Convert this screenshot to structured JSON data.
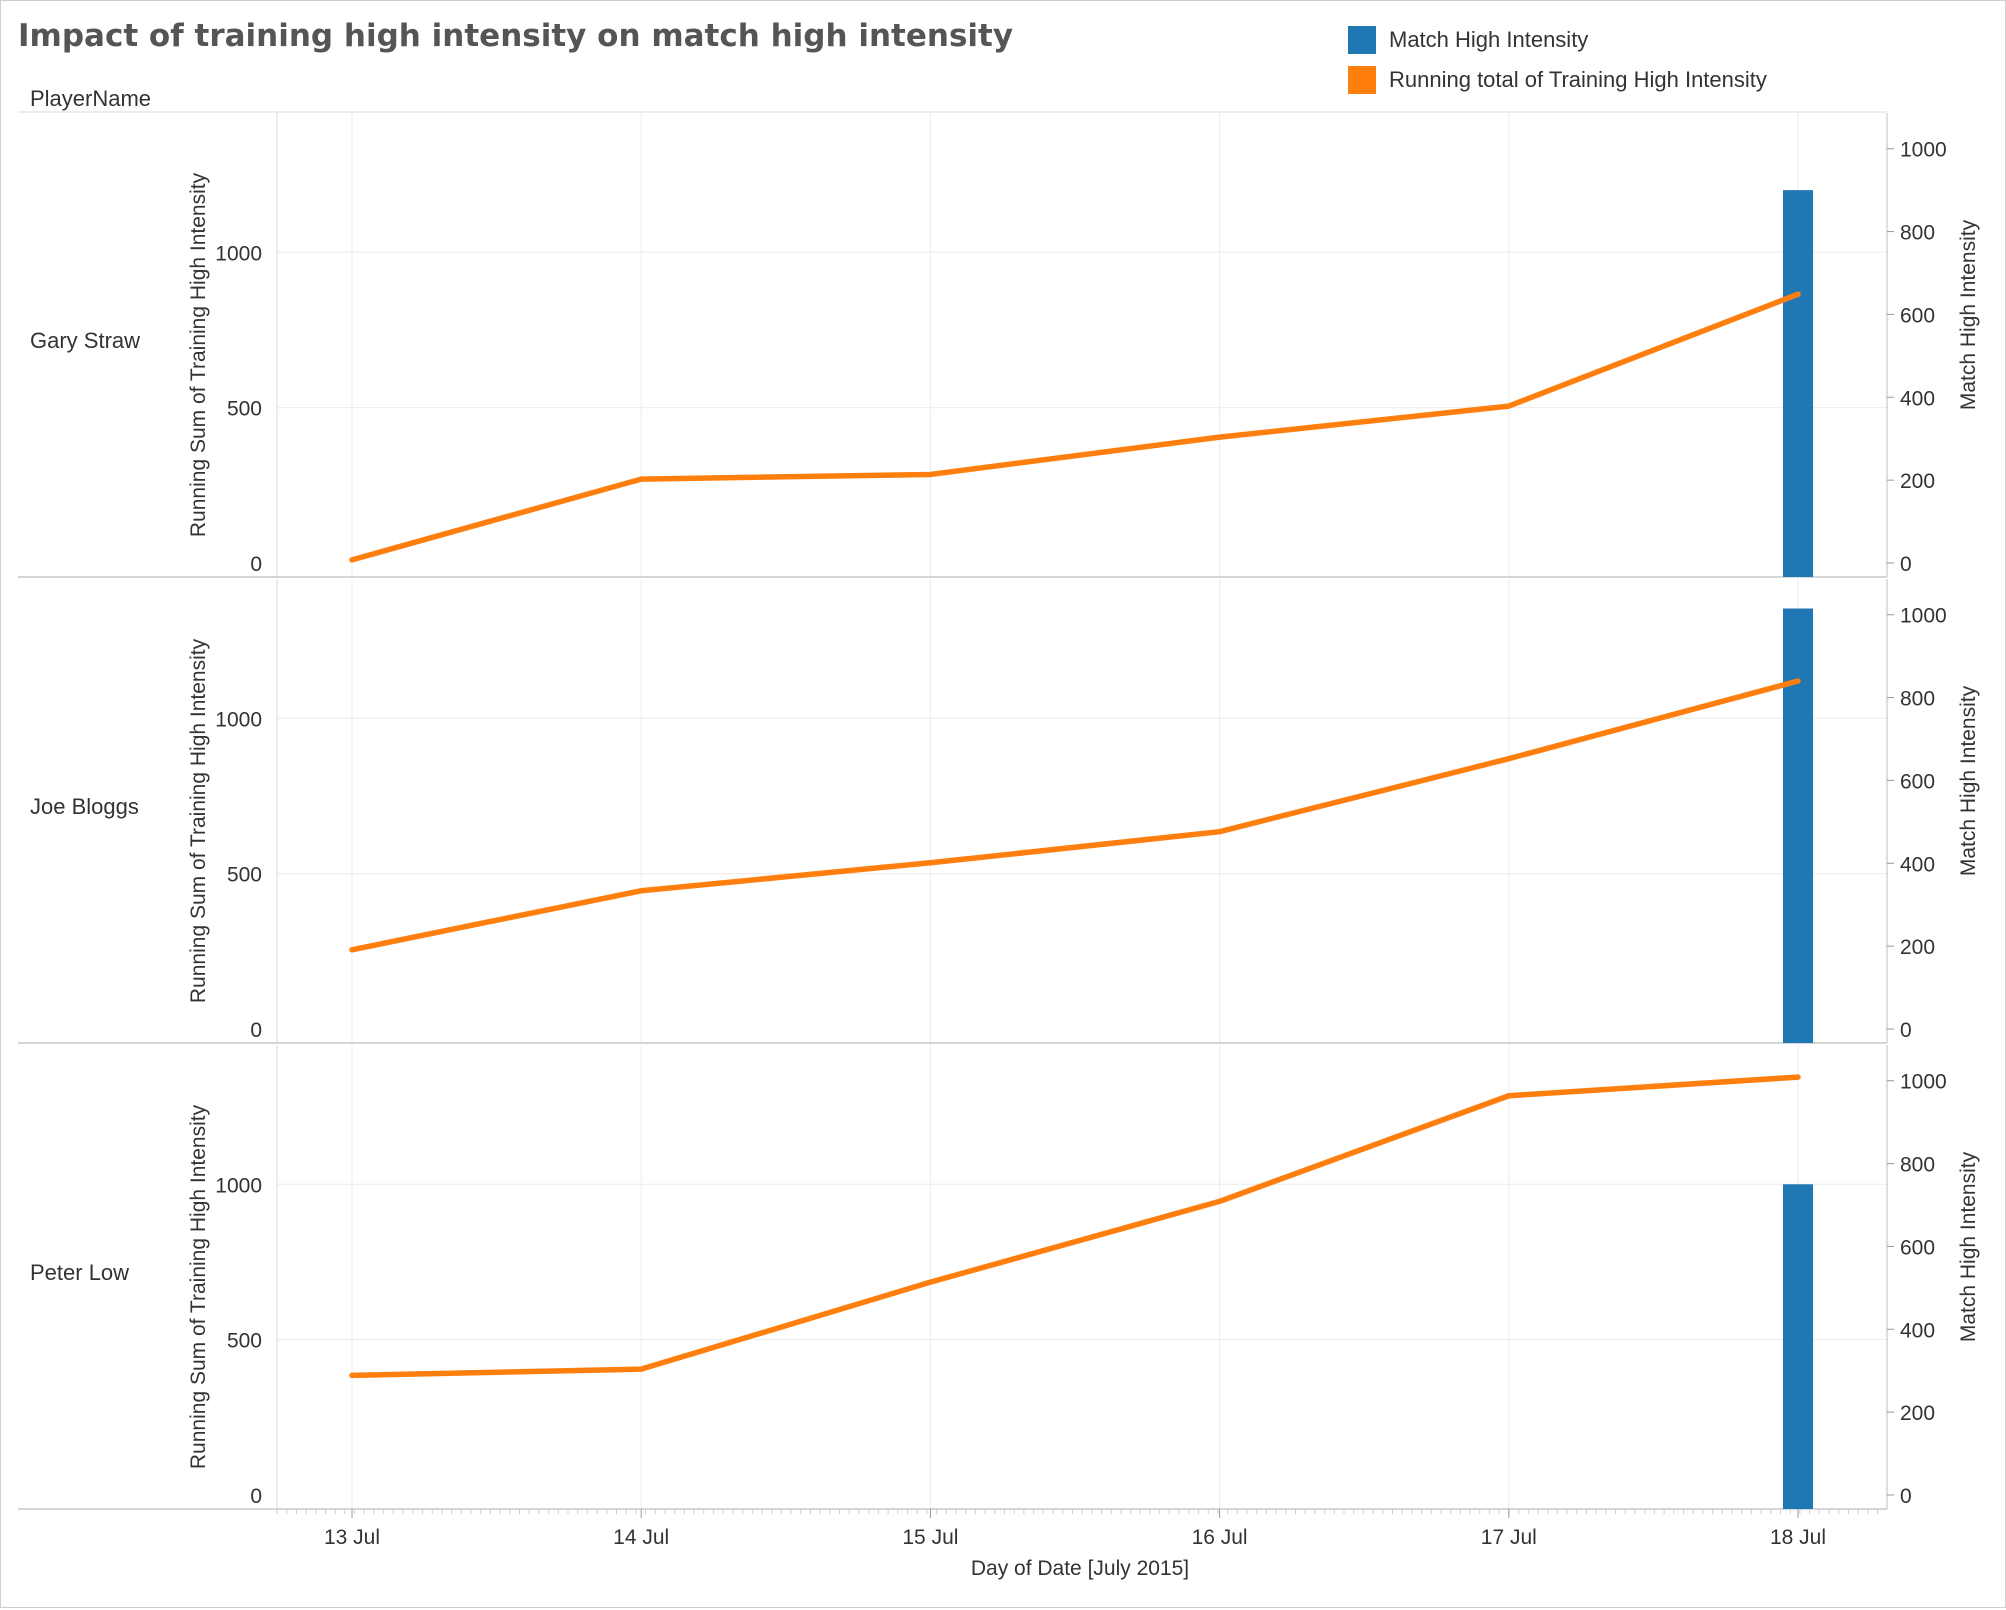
{
  "title": "Impact of training high intensity on match high intensity",
  "row_header": "PlayerName",
  "legend": [
    {
      "label": "Match High Intensity",
      "color": "#1f77b4"
    },
    {
      "label": "Running total of Training High Intensity",
      "color": "#ff7f0e"
    }
  ],
  "chart_data": {
    "type": "line",
    "title": "Impact of training high intensity on match high intensity",
    "xlabel": "Day of Date [July 2015]",
    "x": [
      "13 Jul",
      "14 Jul",
      "15 Jul",
      "16 Jul",
      "17 Jul",
      "18 Jul"
    ],
    "y_left_label": "Running Sum of Training High Intensity",
    "y_left_range": [
      0,
      1400
    ],
    "y_left_ticks": [
      0,
      500,
      1000
    ],
    "y_right_label": "Match High Intensity",
    "y_right_range": [
      0,
      1050
    ],
    "y_right_ticks": [
      0,
      200,
      400,
      600,
      800,
      1000
    ],
    "grid": true,
    "legend_position": "top-right",
    "panels": [
      {
        "player": "Gary Straw",
        "series": [
          {
            "name": "Running total of Training High Intensity",
            "type": "line",
            "axis": "left",
            "values": [
              10,
              270,
              285,
              405,
              505,
              865
            ]
          },
          {
            "name": "Match High Intensity",
            "type": "bar",
            "axis": "right",
            "x": "18 Jul",
            "value": 900
          }
        ]
      },
      {
        "player": "Joe Bloggs",
        "series": [
          {
            "name": "Running total of Training High Intensity",
            "type": "line",
            "axis": "left",
            "values": [
              255,
              445,
              535,
              635,
              870,
              1120
            ]
          },
          {
            "name": "Match High Intensity",
            "type": "bar",
            "axis": "right",
            "x": "18 Jul",
            "value": 1015
          }
        ]
      },
      {
        "player": "Peter Low",
        "series": [
          {
            "name": "Running total of Training High Intensity",
            "type": "line",
            "axis": "left",
            "values": [
              385,
              405,
              685,
              945,
              1285,
              1345
            ]
          },
          {
            "name": "Match High Intensity",
            "type": "bar",
            "axis": "right",
            "x": "18 Jul",
            "value": 750
          }
        ]
      }
    ]
  }
}
